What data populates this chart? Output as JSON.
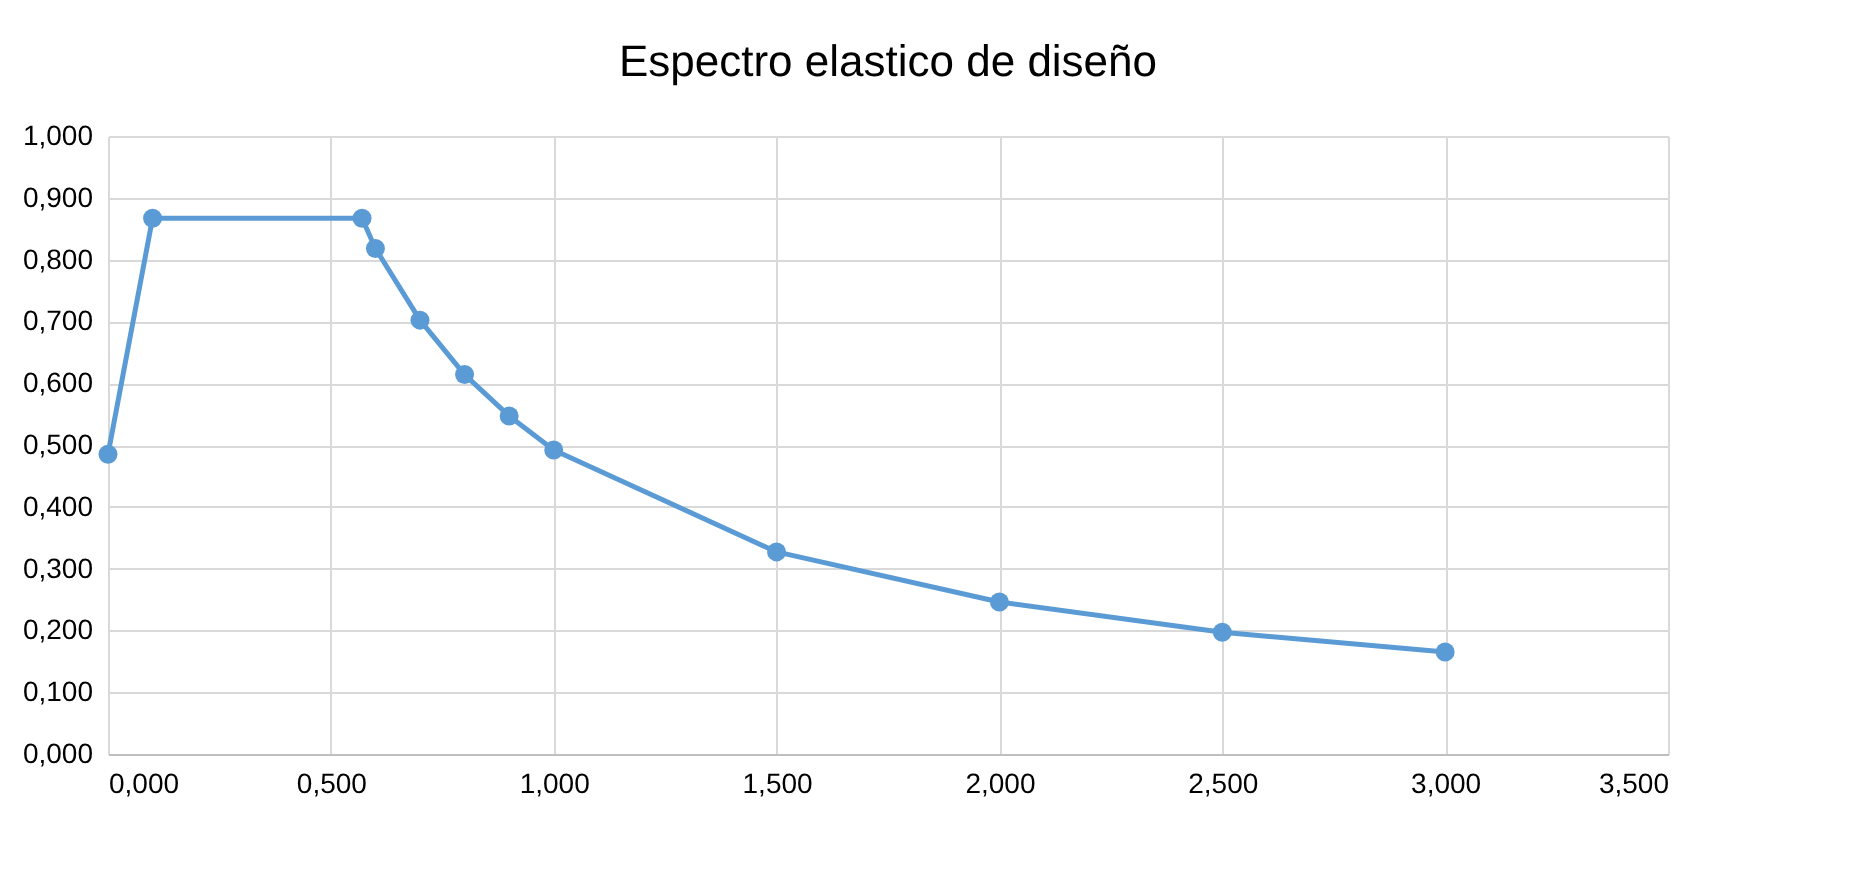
{
  "chart_data": {
    "type": "line",
    "title": "Espectro elastico de diseño",
    "x": [
      0,
      0.1,
      0.57,
      0.6,
      0.7,
      0.8,
      0.9,
      1.0,
      1.5,
      2.0,
      2.5,
      3.0
    ],
    "series": [
      {
        "color": "#5b9bd5",
        "values": [
          0.485,
          0.867,
          0.867,
          0.818,
          0.702,
          0.614,
          0.547,
          0.492,
          0.327,
          0.246,
          0.197,
          0.165
        ]
      }
    ],
    "xlim": [
      0,
      3.5
    ],
    "xticks": [
      {
        "value": 0,
        "label": "0,000"
      },
      {
        "value": 0.5,
        "label": "0,500"
      },
      {
        "value": 1,
        "label": "1,000"
      },
      {
        "value": 1.5,
        "label": "1,500"
      },
      {
        "value": 2,
        "label": "2,000"
      },
      {
        "value": 2.5,
        "label": "2,500"
      },
      {
        "value": 3,
        "label": "3,000"
      },
      {
        "value": 3.5,
        "label": "3,500"
      }
    ],
    "ylim": [
      0,
      1
    ],
    "yticks": [
      {
        "value": 0,
        "label": "0,000"
      },
      {
        "value": 0.1,
        "label": "0,100"
      },
      {
        "value": 0.2,
        "label": "0,200"
      },
      {
        "value": 0.3,
        "label": "0,300"
      },
      {
        "value": 0.4,
        "label": "0,400"
      },
      {
        "value": 0.5,
        "label": "0,500"
      },
      {
        "value": 0.6,
        "label": "0,600"
      },
      {
        "value": 0.7,
        "label": "0,700"
      },
      {
        "value": 0.8,
        "label": "0,800"
      },
      {
        "value": 0.9,
        "label": "0,900"
      },
      {
        "value": 1,
        "label": "1,000"
      }
    ],
    "grid": true,
    "marker": "circle",
    "line_style": "solid"
  }
}
